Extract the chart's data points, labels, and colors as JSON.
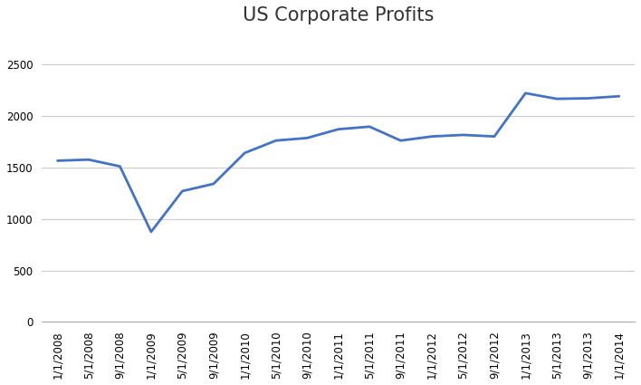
{
  "title": "US Corporate Profits",
  "x_labels": [
    "1/1/2008",
    "5/1/2008",
    "9/1/2008",
    "1/1/2009",
    "5/1/2009",
    "9/1/2009",
    "1/1/2010",
    "5/1/2010",
    "9/1/2010",
    "1/1/2011",
    "5/1/2011",
    "9/1/2011",
    "1/1/2012",
    "5/1/2012",
    "9/1/2012",
    "1/1/2013",
    "5/1/2013",
    "9/1/2013",
    "1/1/2014"
  ],
  "data_y": [
    1565,
    1575,
    1510,
    875,
    1270,
    1340,
    1640,
    1760,
    1785,
    1870,
    1895,
    1760,
    1800,
    1815,
    1800,
    2220,
    2165,
    2170,
    2190
  ],
  "ylim": [
    0,
    2800
  ],
  "yticks": [
    0,
    500,
    1000,
    1500,
    2000,
    2500
  ],
  "line_color": "#4472C4",
  "line_width": 2.0,
  "title_fontsize": 15,
  "tick_fontsize": 8.5,
  "background_color": "#ffffff",
  "grid_color": "#cccccc"
}
